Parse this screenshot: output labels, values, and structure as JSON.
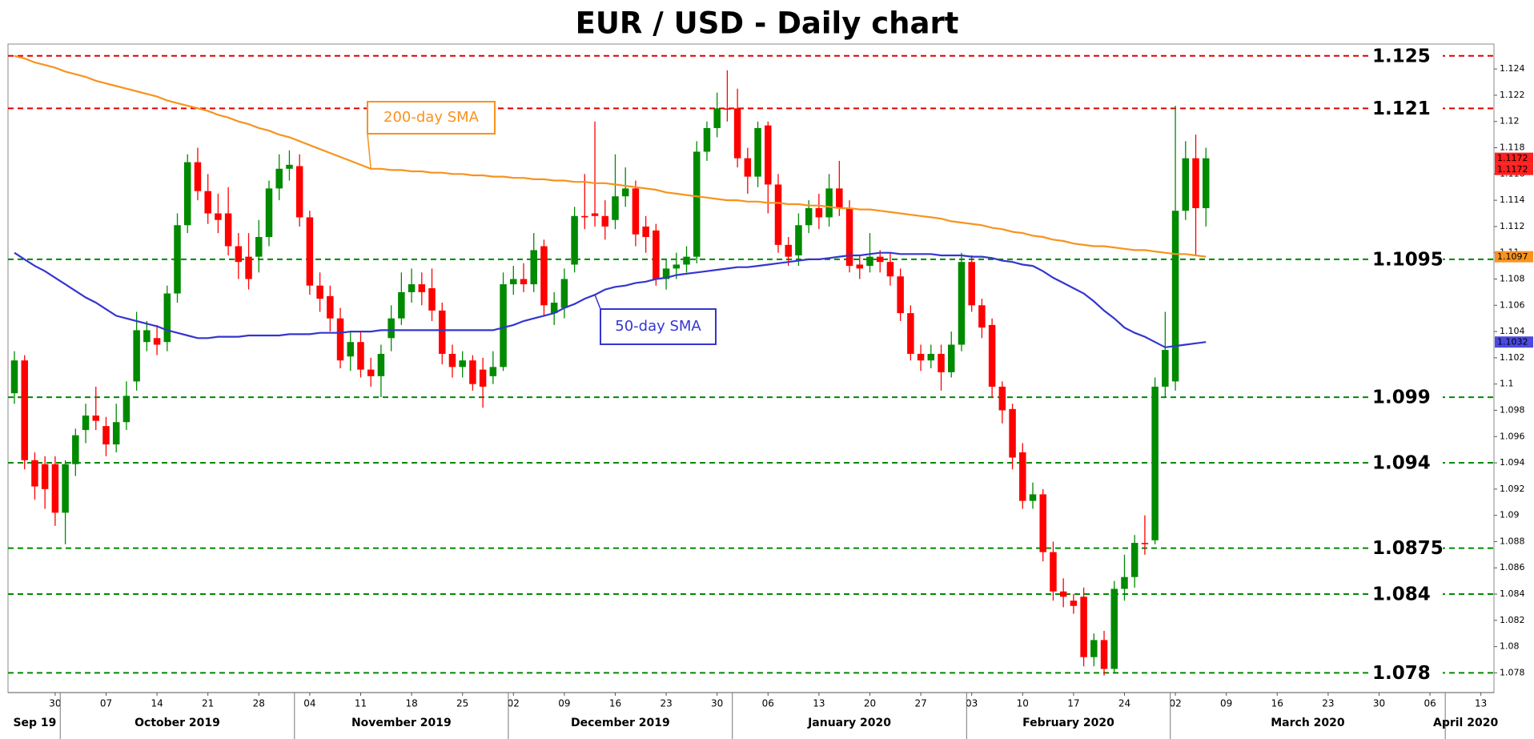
{
  "chart_data": {
    "type": "candlestick",
    "title": "EUR / USD - Daily chart",
    "ylim": [
      1.0765,
      1.1259
    ],
    "yticks": [
      1.078,
      1.08,
      1.082,
      1.084,
      1.086,
      1.088,
      1.09,
      1.092,
      1.094,
      1.096,
      1.098,
      1.1,
      1.102,
      1.104,
      1.106,
      1.108,
      1.11,
      1.112,
      1.114,
      1.116,
      1.118,
      1.12,
      1.122,
      1.124
    ],
    "up_color": "#008a00",
    "down_color": "#ff0000",
    "categories": [
      null,
      null,
      null,
      null,
      "30",
      null,
      null,
      null,
      null,
      "07",
      null,
      null,
      null,
      null,
      "14",
      null,
      null,
      null,
      null,
      "21",
      null,
      null,
      null,
      null,
      "28",
      null,
      null,
      null,
      null,
      "04",
      null,
      null,
      null,
      null,
      "11",
      null,
      null,
      null,
      null,
      "18",
      null,
      null,
      null,
      null,
      "25",
      null,
      null,
      null,
      null,
      "02",
      null,
      null,
      null,
      null,
      "09",
      null,
      null,
      null,
      null,
      "16",
      null,
      null,
      null,
      null,
      "23",
      null,
      null,
      null,
      null,
      "30",
      null,
      null,
      null,
      null,
      "06",
      null,
      null,
      null,
      null,
      "13",
      null,
      null,
      null,
      null,
      "20",
      null,
      null,
      null,
      null,
      "27",
      null,
      null,
      null,
      null,
      "03",
      null,
      null,
      null,
      null,
      "10",
      null,
      null,
      null,
      null,
      "17",
      null,
      null,
      null,
      null,
      "24",
      null,
      null,
      null,
      null,
      "02",
      null,
      null,
      null,
      null,
      "09",
      null,
      null,
      null,
      null,
      "16",
      null,
      null,
      null,
      null,
      "23",
      null,
      null,
      null,
      null,
      "30",
      null,
      null,
      null,
      null,
      "06",
      null,
      null,
      null,
      null,
      "13"
    ],
    "month_labels": [
      "Sep 19",
      "October 2019",
      "November 2019",
      "December 2019",
      "January 2020",
      "February 2020",
      "March 2020",
      "April 2020"
    ],
    "open": [
      1.0993,
      1.1018,
      1.0942,
      1.0939,
      1.0939,
      1.0902,
      1.0939,
      1.0965,
      1.0976,
      1.0968,
      1.0954,
      1.0971,
      1.1002,
      1.1032,
      1.1035,
      1.1032,
      1.1069,
      1.1121,
      1.1169,
      1.1147,
      1.113,
      1.113,
      1.1105,
      1.1097,
      1.1097,
      1.1112,
      1.1149,
      1.1164,
      1.1166,
      1.1127,
      1.1075,
      1.1067,
      1.105,
      1.1021,
      1.1032,
      1.1011,
      1.1006,
      1.1035,
      1.105,
      1.107,
      1.1076,
      1.1073,
      1.1056,
      1.1023,
      1.1013,
      1.1018,
      1.1011,
      1.1006,
      1.1013,
      1.1076,
      1.108,
      1.1076,
      1.1105,
      1.1054,
      1.1058,
      1.1091,
      1.1128,
      1.113,
      1.1128,
      1.1125,
      1.1143,
      1.1149,
      1.112,
      1.1117,
      1.108,
      1.1088,
      1.1091,
      1.1097,
      1.1177,
      1.1195,
      1.121,
      1.121,
      1.1172,
      1.1158,
      1.1197,
      1.1152,
      1.1106,
      1.1098,
      1.1121,
      1.1134,
      1.1127,
      1.1149,
      1.1134,
      1.1091,
      1.109,
      1.1097,
      1.1093,
      1.1082,
      1.1054,
      1.1023,
      1.1018,
      1.1023,
      1.1009,
      1.103,
      1.1093,
      1.106,
      1.1045,
      1.0998,
      1.0981,
      1.0948,
      1.0911,
      1.0916,
      1.0872,
      1.0842,
      1.0835,
      1.0838,
      1.0792,
      1.0805,
      1.0783,
      1.0844,
      1.0853,
      1.0879,
      1.0881,
      1.0998,
      1.1002,
      1.1132,
      1.1172,
      1.1134,
      null,
      null,
      null,
      null,
      null,
      null,
      null,
      null,
      null,
      null,
      null,
      null,
      null,
      null,
      null,
      null,
      null,
      null,
      null,
      null,
      null,
      null,
      null,
      null,
      null,
      null,
      null
    ],
    "high": [
      1.1025,
      1.1022,
      1.0948,
      1.0945,
      1.0945,
      1.0942,
      1.0966,
      1.0985,
      1.0998,
      1.0975,
      1.0985,
      1.1002,
      1.1055,
      1.1048,
      1.1045,
      1.1075,
      1.113,
      1.1175,
      1.118,
      1.116,
      1.1145,
      1.115,
      1.1115,
      1.1115,
      1.1125,
      1.1155,
      1.1175,
      1.1178,
      1.1175,
      1.1132,
      1.1085,
      1.1075,
      1.1058,
      1.104,
      1.104,
      1.102,
      1.103,
      1.106,
      1.1085,
      1.1088,
      1.1085,
      1.1088,
      1.1062,
      1.103,
      1.1025,
      1.1022,
      1.102,
      1.1025,
      1.1085,
      1.109,
      1.1092,
      1.1115,
      1.111,
      1.107,
      1.1088,
      1.1135,
      1.116,
      1.12,
      1.114,
      1.1175,
      1.1165,
      1.1155,
      1.1128,
      1.1122,
      1.1095,
      1.11,
      1.1105,
      1.1185,
      1.12,
      1.1222,
      1.1239,
      1.1225,
      1.118,
      1.12,
      1.12,
      1.116,
      1.1112,
      1.113,
      1.114,
      1.1145,
      1.116,
      1.117,
      1.114,
      1.1098,
      1.1115,
      1.1102,
      1.11,
      1.1088,
      1.106,
      1.103,
      1.103,
      1.103,
      1.104,
      1.11,
      1.1098,
      1.1065,
      1.105,
      1.1002,
      1.0985,
      1.0955,
      1.0925,
      1.092,
      1.088,
      1.0852,
      1.084,
      1.0845,
      1.081,
      1.0812,
      1.085,
      1.087,
      1.0885,
      1.09,
      1.1005,
      1.1055,
      1.1212,
      1.1185,
      1.119,
      1.118,
      null,
      null,
      null,
      null,
      null,
      null,
      null,
      null,
      null,
      null,
      null,
      null,
      null,
      null,
      null,
      null,
      null,
      null,
      null,
      null,
      null,
      null,
      null,
      null,
      null,
      null,
      null
    ],
    "low": [
      1.0985,
      1.0935,
      1.0912,
      1.0905,
      1.0892,
      1.0878,
      1.093,
      1.0955,
      1.0965,
      1.0945,
      1.0948,
      1.0965,
      1.0995,
      1.1025,
      1.1022,
      1.1025,
      1.1062,
      1.1115,
      1.114,
      1.1122,
      1.1115,
      1.1098,
      1.108,
      1.1072,
      1.1085,
      1.1105,
      1.114,
      1.1155,
      1.112,
      1.1068,
      1.1055,
      1.104,
      1.1012,
      1.101,
      1.1005,
      1.0998,
      1.099,
      1.1025,
      1.1045,
      1.1062,
      1.106,
      1.1048,
      1.1015,
      1.1005,
      1.1005,
      1.0995,
      1.0982,
      1.1,
      1.101,
      1.1068,
      1.107,
      1.107,
      1.1052,
      1.1045,
      1.105,
      1.1085,
      1.1118,
      1.112,
      1.111,
      1.1118,
      1.1135,
      1.1105,
      1.11,
      1.1075,
      1.1072,
      1.108,
      1.1085,
      1.1092,
      1.117,
      1.1188,
      1.12,
      1.1165,
      1.1145,
      1.115,
      1.113,
      1.11,
      1.109,
      1.109,
      1.1115,
      1.1118,
      1.112,
      1.1128,
      1.1085,
      1.108,
      1.1085,
      1.1085,
      1.1075,
      1.1048,
      1.1018,
      1.101,
      1.1012,
      1.0995,
      1.1005,
      1.1025,
      1.1055,
      1.1035,
      1.099,
      1.097,
      1.0935,
      1.0905,
      1.0905,
      1.0865,
      1.0835,
      1.083,
      1.0825,
      1.0785,
      1.0785,
      1.0778,
      1.078,
      1.0835,
      1.0845,
      1.087,
      1.0878,
      1.099,
      1.0995,
      1.1125,
      1.1098,
      1.112,
      null,
      null,
      null,
      null,
      null,
      null,
      null,
      null,
      null,
      null,
      null,
      null,
      null,
      null,
      null,
      null,
      null,
      null,
      null,
      null,
      null,
      null,
      null,
      null,
      null,
      null,
      null
    ],
    "close": [
      1.1018,
      1.0942,
      1.0922,
      1.092,
      1.0902,
      1.0939,
      1.0961,
      1.0976,
      1.0972,
      1.0954,
      1.0971,
      1.0991,
      1.1041,
      1.1041,
      1.103,
      1.1069,
      1.1121,
      1.1169,
      1.1147,
      1.113,
      1.1125,
      1.1105,
      1.1093,
      1.108,
      1.1112,
      1.1149,
      1.1164,
      1.1167,
      1.1127,
      1.1075,
      1.1065,
      1.105,
      1.1018,
      1.1032,
      1.1011,
      1.1006,
      1.1023,
      1.105,
      1.107,
      1.1076,
      1.107,
      1.1056,
      1.1023,
      1.1013,
      1.1018,
      1.1,
      1.0998,
      1.1013,
      1.1076,
      1.108,
      1.1076,
      1.1102,
      1.106,
      1.1062,
      1.108,
      1.1128,
      1.1127,
      1.1128,
      1.112,
      1.1143,
      1.1149,
      1.1114,
      1.1112,
      1.108,
      1.1088,
      1.1091,
      1.1097,
      1.1177,
      1.1195,
      1.121,
      1.1209,
      1.1172,
      1.1158,
      1.1195,
      1.1152,
      1.1106,
      1.1097,
      1.1121,
      1.1134,
      1.1127,
      1.1149,
      1.1134,
      1.109,
      1.1088,
      1.1097,
      1.1093,
      1.1082,
      1.1054,
      1.1023,
      1.1018,
      1.1023,
      1.1009,
      1.103,
      1.1093,
      1.106,
      1.1043,
      1.0998,
      1.098,
      1.0944,
      1.0911,
      1.0916,
      1.0872,
      1.0842,
      1.0838,
      1.0831,
      1.0792,
      1.0805,
      1.0783,
      1.0844,
      1.0853,
      1.0879,
      1.0878,
      1.0998,
      1.1026,
      1.1132,
      1.1172,
      1.1134,
      1.1172,
      null,
      null,
      null,
      null,
      null,
      null,
      null,
      null,
      null,
      null,
      null,
      null,
      null,
      null,
      null,
      null,
      null,
      null,
      null,
      null,
      null,
      null,
      null,
      null,
      null,
      null,
      null
    ],
    "series": [
      {
        "name": "200-day SMA",
        "color": "#f7931e",
        "values": [
          1.125,
          1.1248,
          1.1245,
          1.1243,
          1.1241,
          1.1238,
          1.1236,
          1.1234,
          1.1231,
          1.1229,
          1.1227,
          1.1225,
          1.1223,
          1.1221,
          1.1219,
          1.1216,
          1.1214,
          1.1212,
          1.121,
          1.1208,
          1.1205,
          1.1203,
          1.12,
          1.1198,
          1.1195,
          1.1193,
          1.119,
          1.1188,
          1.1185,
          1.1182,
          1.1179,
          1.1176,
          1.1173,
          1.117,
          1.1167,
          1.1164,
          1.1164,
          1.1163,
          1.1163,
          1.1162,
          1.1162,
          1.1161,
          1.1161,
          1.116,
          1.116,
          1.1159,
          1.1159,
          1.1158,
          1.1158,
          1.1157,
          1.1157,
          1.1156,
          1.1156,
          1.1155,
          1.1155,
          1.1154,
          1.1154,
          1.1153,
          1.1153,
          1.1152,
          1.1151,
          1.115,
          1.1149,
          1.1148,
          1.1146,
          1.1145,
          1.1144,
          1.1143,
          1.1142,
          1.1141,
          1.114,
          1.114,
          1.1139,
          1.1139,
          1.1138,
          1.1138,
          1.1137,
          1.1137,
          1.1136,
          1.1136,
          1.1135,
          1.1134,
          1.1134,
          1.1133,
          1.1133,
          1.1132,
          1.1131,
          1.113,
          1.1129,
          1.1128,
          1.1127,
          1.1126,
          1.1124,
          1.1123,
          1.1122,
          1.1121,
          1.1119,
          1.1118,
          1.1116,
          1.1115,
          1.1113,
          1.1112,
          1.111,
          1.1109,
          1.1107,
          1.1106,
          1.1105,
          1.1105,
          1.1104,
          1.1103,
          1.1102,
          1.1102,
          1.1101,
          1.11,
          1.1099,
          1.1099,
          1.1098,
          1.1097,
          null,
          null,
          null,
          null,
          null,
          null,
          null,
          null,
          null,
          null,
          null,
          null,
          null,
          null,
          null,
          null,
          null,
          null,
          null,
          null,
          null,
          null,
          null,
          null,
          null,
          null,
          null
        ]
      },
      {
        "name": "50-day SMA",
        "color": "#3535d0",
        "values": [
          1.11,
          1.1095,
          1.109,
          1.1086,
          1.1081,
          1.1076,
          1.1071,
          1.1066,
          1.1062,
          1.1057,
          1.1052,
          1.105,
          1.1048,
          1.1046,
          1.1044,
          1.1041,
          1.1039,
          1.1037,
          1.1035,
          1.1035,
          1.1036,
          1.1036,
          1.1036,
          1.1037,
          1.1037,
          1.1037,
          1.1037,
          1.1038,
          1.1038,
          1.1038,
          1.1039,
          1.1039,
          1.1039,
          1.104,
          1.104,
          1.104,
          1.1041,
          1.1041,
          1.1041,
          1.1041,
          1.1041,
          1.1041,
          1.1041,
          1.1041,
          1.1041,
          1.1041,
          1.1041,
          1.1041,
          1.1043,
          1.1045,
          1.1048,
          1.105,
          1.1052,
          1.1054,
          1.1058,
          1.1061,
          1.1065,
          1.1068,
          1.1072,
          1.1074,
          1.1075,
          1.1077,
          1.1078,
          1.108,
          1.1081,
          1.1083,
          1.1084,
          1.1085,
          1.1086,
          1.1087,
          1.1088,
          1.1089,
          1.1089,
          1.109,
          1.1091,
          1.1092,
          1.1093,
          1.1094,
          1.1095,
          1.1095,
          1.1096,
          1.1097,
          1.1098,
          1.1098,
          1.1099,
          1.11,
          1.11,
          1.1099,
          1.1099,
          1.1099,
          1.1099,
          1.1098,
          1.1098,
          1.1098,
          1.1097,
          1.1097,
          1.1096,
          1.1094,
          1.1093,
          1.1091,
          1.109,
          1.1086,
          1.1081,
          1.1077,
          1.1073,
          1.1069,
          1.1063,
          1.1056,
          1.105,
          1.1043,
          1.1039,
          1.1036,
          1.1032,
          1.1028,
          1.1029,
          1.103,
          1.1031,
          1.1032,
          null,
          null,
          null,
          null,
          null,
          null,
          null,
          null,
          null,
          null,
          null,
          null,
          null,
          null,
          null,
          null,
          null,
          null,
          null,
          null,
          null,
          null,
          null,
          null,
          null,
          null,
          null
        ]
      }
    ],
    "levels": [
      {
        "value": 1.125,
        "color": "#e00000"
      },
      {
        "value": 1.121,
        "color": "#e00000"
      },
      {
        "value": 1.1095,
        "color": "#008a00"
      },
      {
        "value": 1.099,
        "color": "#008a00"
      },
      {
        "value": 1.094,
        "color": "#008a00"
      },
      {
        "value": 1.0875,
        "color": "#008a00"
      },
      {
        "value": 1.084,
        "color": "#008a00"
      },
      {
        "value": 1.078,
        "color": "#008a00"
      }
    ],
    "price_tags": [
      {
        "value": 1.1172,
        "color": "#ff2020"
      },
      {
        "value": 1.1172,
        "color": "#ff2020"
      },
      {
        "value": 1.1097,
        "color": "#f7931e"
      },
      {
        "value": 1.1032,
        "color": "#4a4ae0"
      }
    ]
  }
}
